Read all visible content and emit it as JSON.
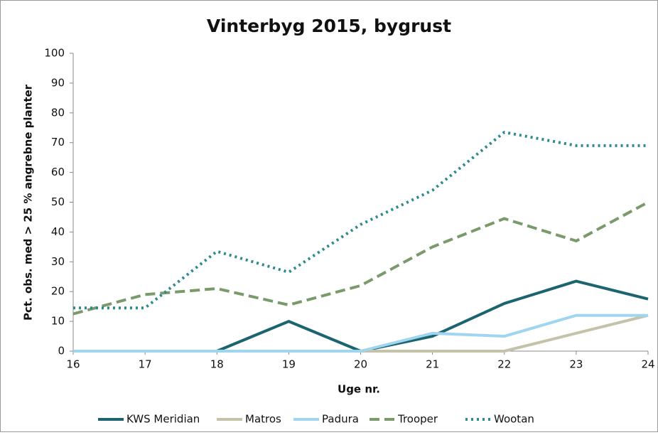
{
  "chart_data": {
    "type": "line",
    "title": "Vinterbyg 2015, bygrust",
    "xlabel": "Uge nr.",
    "ylabel": "Pct. obs. med > 25 % angrebne planter",
    "x": [
      16,
      17,
      18,
      19,
      20,
      21,
      22,
      23,
      24
    ],
    "xlim": [
      16,
      24
    ],
    "xticks": [
      16,
      17,
      18,
      19,
      20,
      21,
      22,
      23,
      24
    ],
    "ylim": [
      0,
      100
    ],
    "yticks": [
      0,
      10,
      20,
      30,
      40,
      50,
      60,
      70,
      80,
      90,
      100
    ],
    "grid": false,
    "legend": "bottom",
    "series": [
      {
        "name": "KWS Meridian",
        "color": "#1b6470",
        "dash": "solid",
        "values": [
          0,
          0,
          0,
          10,
          0,
          5,
          16,
          23.5,
          17.5
        ]
      },
      {
        "name": "Matros",
        "color": "#c4c3a9",
        "dash": "solid",
        "values": [
          0,
          0,
          0,
          0,
          0,
          0,
          0,
          6,
          12
        ]
      },
      {
        "name": "Padura",
        "color": "#9fd5ef",
        "dash": "solid",
        "values": [
          0,
          0,
          0,
          0,
          0,
          6,
          5,
          12,
          12
        ]
      },
      {
        "name": "Trooper",
        "color": "#7a9a6c",
        "dash": "dashed",
        "values": [
          12.5,
          19,
          21,
          15.5,
          22,
          35,
          44.5,
          37,
          50
        ]
      },
      {
        "name": "Wootan",
        "color": "#2e8b8d",
        "dash": "dotted",
        "values": [
          14.5,
          14.5,
          33.5,
          26.5,
          42.5,
          54,
          73.5,
          69,
          69
        ]
      }
    ]
  }
}
